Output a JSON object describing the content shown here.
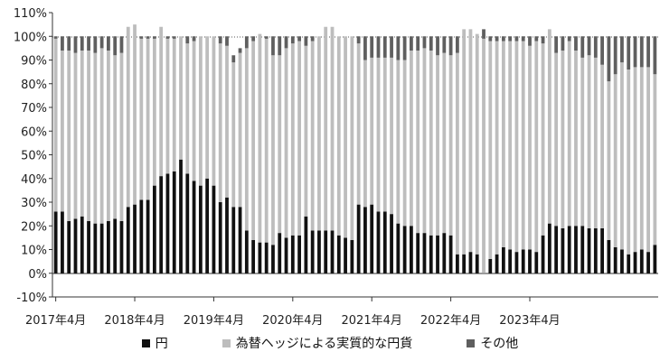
{
  "chart_data": {
    "type": "bar",
    "stacked": true,
    "ylim": [
      -10,
      110
    ],
    "yticks": [
      "-10%",
      "0%",
      "10%",
      "20%",
      "30%",
      "40%",
      "50%",
      "60%",
      "70%",
      "80%",
      "90%",
      "100%",
      "110%"
    ],
    "x_tick_labels": [
      "2017年4月",
      "2018年4月",
      "2019年4月",
      "2020年4月",
      "2021年4月",
      "2022年4月",
      "2023年4月"
    ],
    "x_tick_index": [
      0,
      12,
      24,
      36,
      48,
      60,
      72
    ],
    "series": [
      {
        "name": "円",
        "color": "#111111",
        "values": [
          26,
          26,
          22,
          23,
          24,
          22,
          21,
          21,
          22,
          23,
          22,
          28,
          29,
          31,
          31,
          37,
          41,
          42,
          43,
          48,
          42,
          39,
          37,
          40,
          37,
          30,
          32,
          28,
          28,
          18,
          14,
          13,
          13,
          12,
          17,
          15,
          16,
          16,
          24,
          18,
          18,
          18,
          18,
          16,
          15,
          14,
          29,
          28,
          29,
          26,
          26,
          25,
          21,
          20,
          20,
          17,
          17,
          16,
          16,
          17,
          16,
          8,
          8,
          9,
          8,
          0,
          6,
          8,
          11,
          10,
          9,
          10,
          10,
          9,
          16,
          21,
          20,
          19,
          20,
          20,
          20,
          19,
          19,
          19,
          14,
          11,
          10,
          8,
          9,
          10,
          9,
          12
        ]
      },
      {
        "name": "為替ヘッジによる実質的な円貨",
        "color": "#bdbdbd",
        "values": [
          73,
          68,
          72,
          70,
          70,
          72,
          72,
          74,
          72,
          69,
          71,
          76,
          76,
          68,
          68,
          62,
          63,
          57,
          56,
          52,
          55,
          59,
          63,
          60,
          63,
          67,
          64,
          61,
          65,
          77,
          84,
          88,
          86,
          80,
          75,
          80,
          81,
          82,
          72,
          80,
          82,
          86,
          86,
          84,
          85,
          86,
          68,
          62,
          62,
          65,
          65,
          66,
          69,
          70,
          74,
          77,
          78,
          78,
          76,
          76,
          76,
          85,
          95,
          94,
          93,
          99,
          92,
          90,
          87,
          88,
          89,
          88,
          86,
          89,
          81,
          82,
          73,
          75,
          78,
          74,
          71,
          73,
          72,
          69,
          67,
          73,
          79,
          78,
          78,
          77,
          78,
          72
        ]
      },
      {
        "name": "その他",
        "color": "#5f5f5f",
        "values": [
          1,
          6,
          6,
          7,
          6,
          6,
          7,
          5,
          6,
          8,
          7,
          0,
          0,
          1,
          1,
          1,
          0,
          1,
          1,
          0,
          3,
          2,
          0,
          0,
          0,
          3,
          4,
          3,
          2,
          5,
          2,
          0,
          1,
          8,
          8,
          5,
          3,
          2,
          4,
          2,
          0,
          0,
          0,
          0,
          0,
          0,
          3,
          10,
          9,
          9,
          9,
          9,
          10,
          10,
          6,
          6,
          5,
          6,
          8,
          7,
          8,
          7,
          0,
          0,
          0,
          4,
          2,
          2,
          2,
          2,
          2,
          2,
          4,
          2,
          3,
          0,
          7,
          6,
          2,
          6,
          9,
          8,
          9,
          12,
          19,
          16,
          11,
          14,
          13,
          13,
          13,
          16
        ]
      }
    ],
    "legend_position": "bottom",
    "grid": false
  }
}
